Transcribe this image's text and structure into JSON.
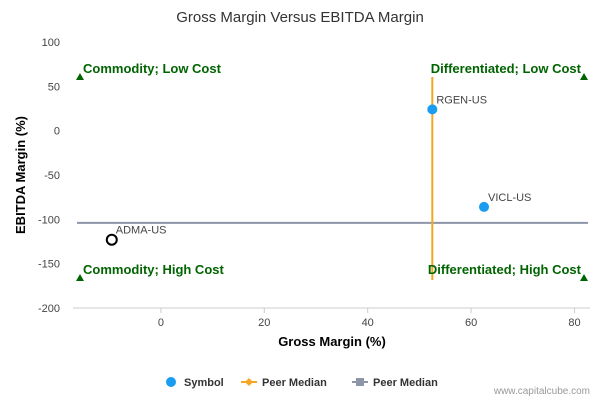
{
  "chart_data": {
    "type": "scatter",
    "title": "Gross Margin Versus EBITDA Margin",
    "xlabel": "Gross Margin (%)",
    "ylabel": "EBITDA Margin (%)",
    "xlim": [
      -17,
      83
    ],
    "ylim": [
      -200,
      100
    ],
    "xticks": [
      0,
      20,
      40,
      60,
      80
    ],
    "yticks": [
      100,
      50,
      0,
      -50,
      -100,
      -150,
      -200
    ],
    "points": [
      {
        "label": "RGEN-US",
        "x": 52.5,
        "y": 24,
        "style": "filled",
        "color": "#1a9cf0"
      },
      {
        "label": "VICL-US",
        "x": 62.5,
        "y": -86,
        "style": "filled",
        "color": "#1a9cf0"
      },
      {
        "label": "ADMA-US",
        "x": -9.5,
        "y": -123,
        "style": "hollow",
        "color": "#000000"
      }
    ],
    "peer_median_x": 52.5,
    "peer_median_y": -104,
    "quadrants": [
      {
        "label": "Commodity; Low Cost",
        "pos": "top-left"
      },
      {
        "label": "Differentiated; Low Cost",
        "pos": "top-right"
      },
      {
        "label": "Commodity; High Cost",
        "pos": "bottom-left"
      },
      {
        "label": "Differentiated; High Cost",
        "pos": "bottom-right"
      }
    ],
    "legend": [
      {
        "label": "Symbol",
        "color": "#1a9cf0",
        "marker": "circle"
      },
      {
        "label": "Peer Median",
        "color": "#f5a623",
        "marker": "diamond-line"
      },
      {
        "label": "Peer Median",
        "color": "#8c96a8",
        "marker": "square-line"
      }
    ],
    "legend_position": "bottom-center",
    "colors": {
      "quadrant_text": "#006400",
      "median_x_line": "#f5a623",
      "median_y_line": "#8c96a8",
      "symbol": "#1a9cf0"
    }
  },
  "credit": "www.capitalcube.com"
}
